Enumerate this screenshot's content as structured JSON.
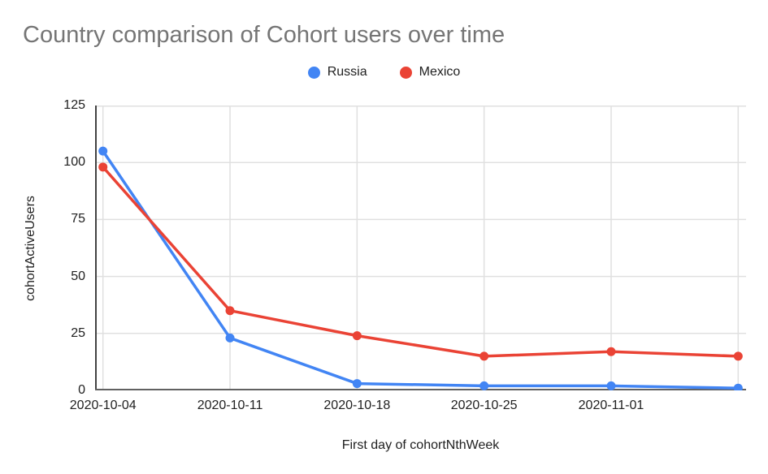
{
  "chart_data": {
    "type": "line",
    "title": "Country comparison of Cohort users over time",
    "xlabel": "First day of cohortNthWeek",
    "ylabel": "cohortActiveUsers",
    "x_tick_labels": [
      "2020-10-04",
      "2020-10-11",
      "2020-10-18",
      "2020-10-25",
      "2020-11-01"
    ],
    "num_points": 6,
    "series": [
      {
        "name": "Russia",
        "color": "#4285f4",
        "values": [
          105,
          23,
          3,
          2,
          2,
          1
        ]
      },
      {
        "name": "Mexico",
        "color": "#ea4335",
        "values": [
          98,
          35,
          24,
          15,
          17,
          15
        ]
      }
    ],
    "ylim": [
      0,
      125
    ],
    "yticks": [
      0,
      25,
      50,
      75,
      100,
      125
    ],
    "grid": true,
    "legend_position": "top",
    "colors": {
      "title_text": "#757575",
      "axis_text": "#212121",
      "gridline": "#e0e0e0",
      "y_axis_line": "#424242",
      "x_axis_line": "#616161",
      "background": "#ffffff"
    }
  }
}
